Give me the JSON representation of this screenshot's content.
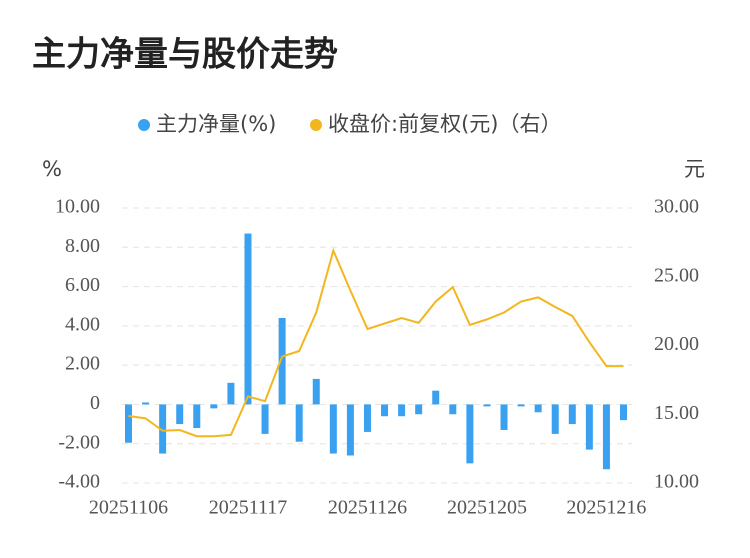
{
  "chart_data": {
    "type": "bar_line",
    "title": "主力净量与股价走势",
    "y_label": "%",
    "y2_label": "元",
    "categories": [
      "20251106",
      null,
      null,
      null,
      null,
      null,
      null,
      "20251117",
      null,
      null,
      null,
      null,
      null,
      null,
      "20251126",
      null,
      null,
      null,
      null,
      null,
      null,
      "20251205",
      null,
      null,
      null,
      null,
      null,
      null,
      "20251216",
      null
    ],
    "series": [
      {
        "name": "主力净量(%)",
        "type": "bar",
        "color": "#3aa0f0",
        "values": [
          -1.95,
          0.1,
          -2.5,
          -1.0,
          -1.2,
          -0.2,
          1.1,
          8.7,
          -1.5,
          4.4,
          -1.9,
          1.3,
          -2.5,
          -2.6,
          -1.4,
          -0.6,
          -0.6,
          -0.5,
          0.7,
          -0.5,
          -3.0,
          -0.1,
          -1.3,
          -0.1,
          -0.4,
          -1.5,
          -1.0,
          -2.3,
          -3.3,
          -0.8
        ]
      },
      {
        "name": "收盘价:前复权(元)（右）",
        "type": "line",
        "axis": "y2",
        "color": "#f3b61f",
        "values": [
          14.87,
          14.7,
          13.8,
          13.85,
          13.4,
          13.4,
          13.5,
          16.3,
          15.95,
          19.2,
          19.6,
          22.4,
          26.9,
          24.0,
          21.2,
          21.6,
          22.0,
          21.65,
          23.2,
          24.25,
          21.5,
          21.9,
          22.4,
          23.2,
          23.5,
          22.8,
          22.15,
          20.25,
          18.5,
          18.5
        ]
      }
    ],
    "ylim": [
      -4,
      10
    ],
    "yticks": [
      {
        "value": -4,
        "label": "-4.00"
      },
      {
        "value": -2,
        "label": "-2.00"
      },
      0,
      {
        "value": 2,
        "label": "2.00"
      },
      {
        "value": 4,
        "label": "4.00"
      },
      {
        "value": 6,
        "label": "6.00"
      },
      {
        "value": 8,
        "label": "8.00"
      },
      {
        "value": 10,
        "label": "10.00"
      }
    ],
    "y2lim": [
      10,
      30
    ],
    "y2ticks": [
      {
        "value": 10,
        "label": "10.00"
      },
      {
        "value": 15,
        "label": "15.00"
      },
      {
        "value": 20,
        "label": "20.00"
      },
      {
        "value": 25,
        "label": "25.00"
      },
      {
        "value": 30,
        "label": "30.00"
      }
    ],
    "grid": true
  }
}
